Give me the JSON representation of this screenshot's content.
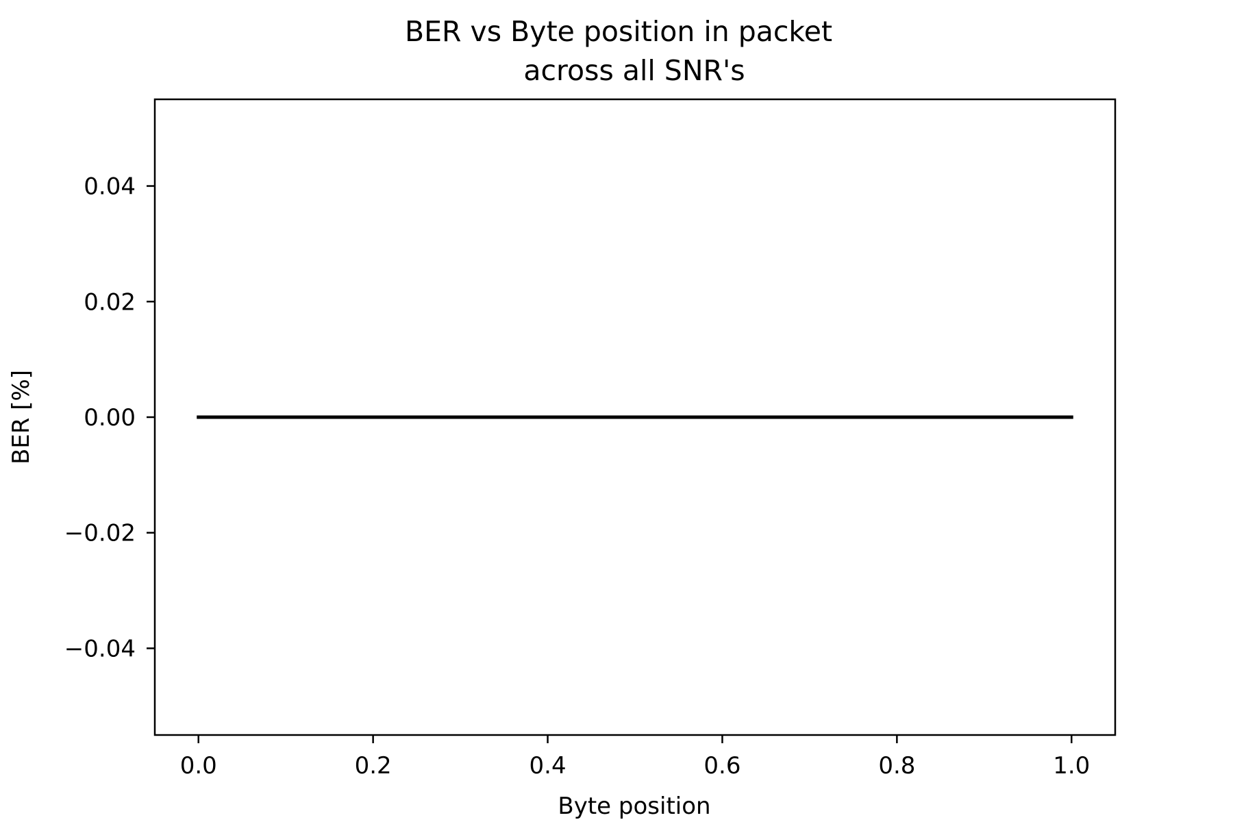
{
  "chart_data": {
    "type": "line",
    "title": "BER vs Byte position in packet\nacross all SNR's",
    "title_lines": [
      "BER vs Byte position in packet",
      "across all SNR's"
    ],
    "xlabel": "Byte position",
    "ylabel": "BER [%]",
    "xlim": [
      -0.05,
      1.05
    ],
    "ylim": [
      -0.055,
      0.055
    ],
    "x_ticks": [
      0.0,
      0.2,
      0.4,
      0.6,
      0.8,
      1.0
    ],
    "x_tick_labels": [
      "0.0",
      "0.2",
      "0.4",
      "0.6",
      "0.8",
      "1.0"
    ],
    "y_ticks": [
      0.04,
      0.02,
      0.0,
      -0.02,
      -0.04
    ],
    "y_tick_labels": [
      "0.04",
      "0.02",
      "0.00",
      "−0.02",
      "−0.04"
    ],
    "grid": false,
    "series": [
      {
        "color": "#000000",
        "x": [
          0.0,
          1.0
        ],
        "y": [
          0.0,
          0.0
        ]
      }
    ]
  }
}
